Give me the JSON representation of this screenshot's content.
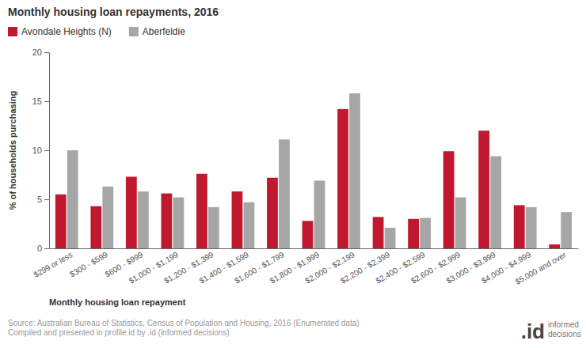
{
  "chart_data": {
    "type": "bar",
    "title": "Monthly housing loan repayments, 2016",
    "x_label": "Monthly housing loan repayment",
    "y_label": "% of households purchasing",
    "source": [
      "Source: Australian Bureau of Statistics, Census of Population and Housing, 2016 (Enumerated data)",
      "Compiled and presented in profile.id by .id (informed decisions)."
    ],
    "logo": [
      ".id",
      "informed",
      "decisions"
    ],
    "categories": [
      "$299 or less",
      "$300 - $599",
      "$600 - $999",
      "$1,000 - $1,199",
      "$1,200 - $1,399",
      "$1,400 - $1,599",
      "$1,600 - $1,799",
      "$1,800 - $1,999",
      "$2,000 - $2,199",
      "$2,200 - $2,399",
      "$2,400 - $2,599",
      "$2,600 - $2,999",
      "$3,000 - $3,999",
      "$4,000 - $4,999",
      "$5,000 and over"
    ],
    "series": [
      {
        "name": "Avondale Heights (N)",
        "color": "#c0182f",
        "values": [
          5.5,
          4.3,
          7.3,
          5.6,
          7.6,
          5.8,
          7.2,
          2.8,
          14.2,
          3.2,
          3.0,
          9.9,
          12.0,
          4.4,
          0.4
        ]
      },
      {
        "name": "Aberfeldie",
        "color": "#a6a6a6",
        "values": [
          10.0,
          6.3,
          5.8,
          5.2,
          4.2,
          4.7,
          11.1,
          6.9,
          15.8,
          2.1,
          3.1,
          5.2,
          9.4,
          4.2,
          3.7
        ]
      }
    ],
    "ylim": [
      0,
      20
    ],
    "yticks": [
      0,
      5,
      10,
      15,
      20
    ],
    "grid": false,
    "legend": "top-left"
  }
}
